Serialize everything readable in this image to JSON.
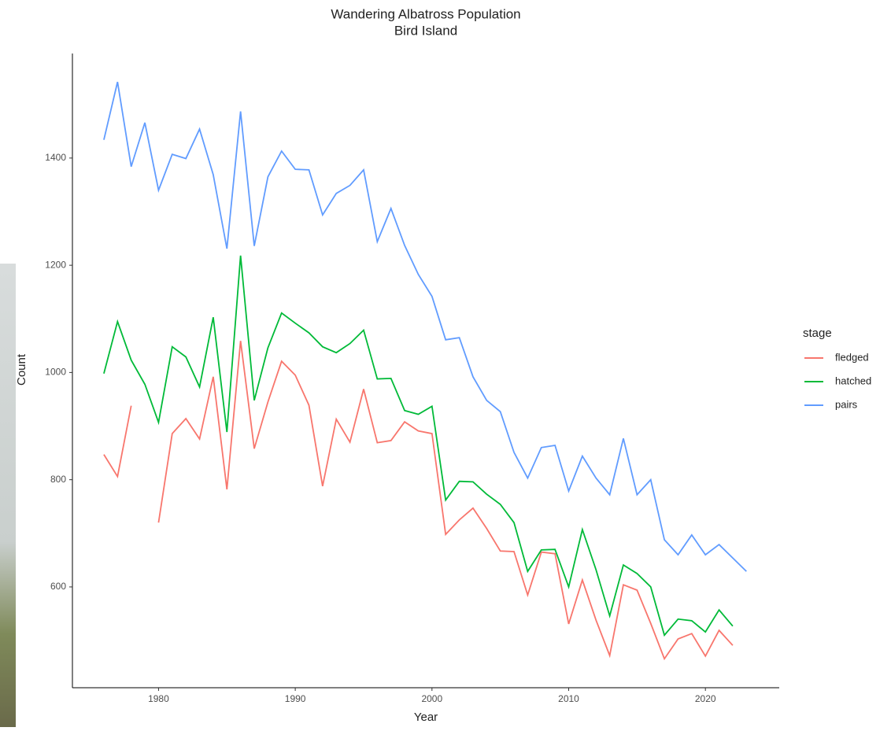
{
  "chart_data": {
    "type": "line",
    "title": "Wandering Albatross Population",
    "subtitle": "Bird Island",
    "x_label": "Year",
    "y_label": "Count",
    "legend_title": "stage",
    "legend_position": "right",
    "x": [
      1976,
      1977,
      1978,
      1979,
      1980,
      1981,
      1982,
      1983,
      1984,
      1985,
      1986,
      1987,
      1988,
      1989,
      1990,
      1991,
      1992,
      1993,
      1994,
      1995,
      1996,
      1997,
      1998,
      1999,
      2000,
      2001,
      2002,
      2003,
      2004,
      2005,
      2006,
      2007,
      2008,
      2009,
      2010,
      2011,
      2012,
      2013,
      2014,
      2015,
      2016,
      2017,
      2018,
      2019,
      2020,
      2021,
      2022,
      2023
    ],
    "series": [
      {
        "name": "fledged",
        "color": "#F8766D",
        "values": [
          847,
          806,
          938,
          null,
          720,
          886,
          914,
          876,
          992,
          782,
          1059,
          858,
          945,
          1021,
          995,
          939,
          788,
          913,
          870,
          969,
          869,
          873,
          908,
          891,
          886,
          698,
          725,
          747,
          709,
          667,
          666,
          585,
          665,
          662,
          531,
          613,
          538,
          472,
          604,
          594,
          532,
          466,
          503,
          513,
          471,
          519,
          491,
          null
        ]
      },
      {
        "name": "hatched",
        "color": "#00BA38",
        "values": [
          998,
          1095,
          1023,
          978,
          907,
          1048,
          1029,
          973,
          1103,
          889,
          1218,
          948,
          1046,
          1111,
          1092,
          1074,
          1048,
          1037,
          1054,
          1079,
          988,
          989,
          929,
          922,
          937,
          762,
          797,
          796,
          773,
          754,
          720,
          629,
          669,
          670,
          600,
          707,
          632,
          546,
          641,
          625,
          600,
          510,
          540,
          537,
          516,
          557,
          527,
          null
        ]
      },
      {
        "name": "pairs",
        "color": "#619CFF",
        "values": [
          1434,
          1542,
          1384,
          1466,
          1340,
          1407,
          1399,
          1454,
          1369,
          1231,
          1487,
          1236,
          1365,
          1413,
          1379,
          1378,
          1294,
          1334,
          1349,
          1378,
          1244,
          1306,
          1237,
          1183,
          1142,
          1061,
          1065,
          992,
          948,
          927,
          851,
          803,
          860,
          864,
          779,
          844,
          803,
          772,
          877,
          772,
          800,
          688,
          660,
          697,
          660,
          679,
          654,
          629
        ]
      }
    ],
    "xlim": [
      1973.7,
      2025.4
    ],
    "xticks": [
      1980,
      1990,
      2000,
      2010,
      2020
    ],
    "ylim": [
      412,
      1595
    ],
    "yticks": [
      600,
      800,
      1000,
      1200,
      1400
    ],
    "grid": false
  }
}
